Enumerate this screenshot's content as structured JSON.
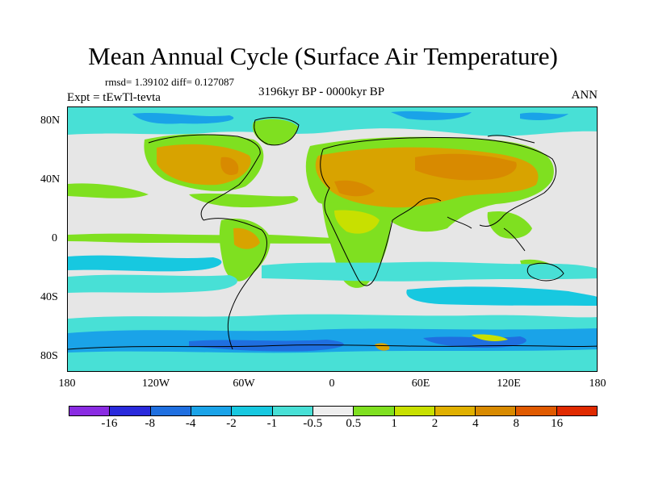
{
  "title": "Mean Annual Cycle (Surface Air Temperature)",
  "stats": "rmsd= 1.39102 diff= 0.127087",
  "experiment": "Expt = tEwTl-tevta",
  "period": "3196kyr BP - 0000kyr BP",
  "season": "ANN",
  "lat_labels": [
    "80N",
    "40N",
    "0",
    "40S",
    "80S"
  ],
  "lon_labels": [
    "180",
    "120W",
    "60W",
    "0",
    "60E",
    "120E",
    "180"
  ],
  "colorbar": {
    "colors": [
      "#8a2be2",
      "#2a2adc",
      "#1f6fe0",
      "#1aa3e8",
      "#17c8e0",
      "#48e0d6",
      "#eeeeee",
      "#7fe020",
      "#c8e000",
      "#e0b000",
      "#d88a00",
      "#e05a00",
      "#e02a00"
    ],
    "labels": [
      "-16",
      "-8",
      "-4",
      "-2",
      "-1",
      "-0.5",
      "0.5",
      "1",
      "2",
      "4",
      "8",
      "16"
    ]
  },
  "palette": {
    "gray": "#e6e6e6",
    "lightblue": "#48e0d6",
    "cyan": "#17c8e0",
    "blue": "#1aa3e8",
    "darkblue": "#1f6fe0",
    "green": "#7fe020",
    "yellowgreen": "#c8e000",
    "orange": "#d8a300",
    "deeporange": "#d88a00"
  }
}
